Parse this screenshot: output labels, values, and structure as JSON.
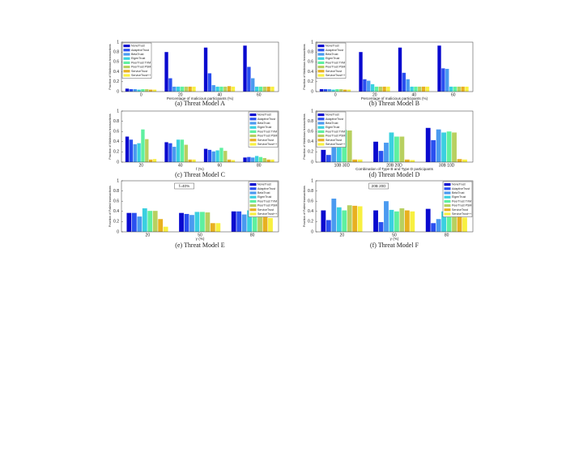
{
  "chart_data": [
    {
      "type": "bar",
      "caption": "(a) Threat Model A",
      "ylabel": "Fraction of Malicious transactions",
      "xlabel": "Percentage of malicious participants (%)",
      "categories": [
        "0",
        "20",
        "40",
        "60"
      ],
      "ylim": [
        0,
        1
      ],
      "yticks": [
        0,
        0.2,
        0.4,
        0.6,
        0.8,
        1
      ],
      "legend": "upper left",
      "series": [
        {
          "name": "NoneTrust",
          "color": "#0a0acf",
          "values": [
            0.06,
            0.8,
            0.89,
            0.93
          ]
        },
        {
          "name": "AdaptiveTrust",
          "color": "#2a4ff0",
          "values": [
            0.05,
            0.27,
            0.37,
            0.5
          ]
        },
        {
          "name": "BetaTrust",
          "color": "#4a9af0",
          "values": [
            0.05,
            0.1,
            0.13,
            0.27
          ]
        },
        {
          "name": "EigenTrust",
          "color": "#3ad0e0",
          "values": [
            0.04,
            0.1,
            0.1,
            0.1
          ]
        },
        {
          "name": "PeerTrust TVM",
          "color": "#5ff0a0",
          "values": [
            0.05,
            0.1,
            0.1,
            0.1
          ]
        },
        {
          "name": "PeerTrust PSM",
          "color": "#b8d060",
          "values": [
            0.05,
            0.1,
            0.1,
            0.1
          ]
        },
        {
          "name": "ServiceTrust",
          "color": "#e8b020",
          "values": [
            0.04,
            0.1,
            0.11,
            0.1
          ]
        },
        {
          "name": "ServiceTrust++",
          "color": "#f8f040",
          "values": [
            0.04,
            0.1,
            0.1,
            0.1
          ]
        }
      ]
    },
    {
      "type": "bar",
      "caption": "(b) Threat Model B",
      "ylabel": "Fraction of Malicious transactions",
      "xlabel": "Percentage of malicious participants (%)",
      "categories": [
        "0",
        "20",
        "40",
        "60"
      ],
      "ylim": [
        0,
        1
      ],
      "yticks": [
        0,
        0.2,
        0.4,
        0.6,
        0.8,
        1
      ],
      "legend": "upper left",
      "series": [
        {
          "name": "NoneTrust",
          "color": "#0a0acf",
          "values": [
            0.05,
            0.8,
            0.89,
            0.93
          ]
        },
        {
          "name": "AdaptiveTrust",
          "color": "#2a4ff0",
          "values": [
            0.05,
            0.25,
            0.38,
            0.47
          ]
        },
        {
          "name": "BetaTrust",
          "color": "#4a9af0",
          "values": [
            0.05,
            0.22,
            0.25,
            0.46
          ]
        },
        {
          "name": "EigenTrust",
          "color": "#3ad0e0",
          "values": [
            0.04,
            0.15,
            0.1,
            0.1
          ]
        },
        {
          "name": "PeerTrust TVM",
          "color": "#5ff0a0",
          "values": [
            0.05,
            0.1,
            0.1,
            0.1
          ]
        },
        {
          "name": "PeerTrust PSM",
          "color": "#b8d060",
          "values": [
            0.05,
            0.1,
            0.1,
            0.1
          ]
        },
        {
          "name": "ServiceTrust",
          "color": "#e8b020",
          "values": [
            0.04,
            0.1,
            0.1,
            0.1
          ]
        },
        {
          "name": "ServiceTrust++",
          "color": "#f8f040",
          "values": [
            0.04,
            0.1,
            0.1,
            0.1
          ]
        }
      ]
    },
    {
      "type": "bar",
      "caption": "(c) Threat Model C",
      "ylabel": "Fraction of Malicious transactions",
      "xlabel": "f (%)",
      "categories": [
        "20",
        "40",
        "60",
        "80"
      ],
      "ylim": [
        0,
        1
      ],
      "yticks": [
        0,
        0.2,
        0.4,
        0.6,
        0.8,
        1
      ],
      "legend": "upper right",
      "series": [
        {
          "name": "NoneTrust",
          "color": "#0a0acf",
          "values": [
            0.5,
            0.39,
            0.26,
            0.09
          ]
        },
        {
          "name": "AdaptiveTrust",
          "color": "#2a4ff0",
          "values": [
            0.44,
            0.37,
            0.24,
            0.1
          ]
        },
        {
          "name": "BetaTrust",
          "color": "#4a9af0",
          "values": [
            0.35,
            0.3,
            0.21,
            0.09
          ]
        },
        {
          "name": "EigenTrust",
          "color": "#3ad0e0",
          "values": [
            0.37,
            0.44,
            0.23,
            0.12
          ]
        },
        {
          "name": "PeerTrust TVM",
          "color": "#5ff0a0",
          "values": [
            0.64,
            0.44,
            0.28,
            0.1
          ]
        },
        {
          "name": "PeerTrust PSM",
          "color": "#b8d060",
          "values": [
            0.45,
            0.34,
            0.22,
            0.08
          ]
        },
        {
          "name": "ServiceTrust",
          "color": "#e8b020",
          "values": [
            0.05,
            0.05,
            0.05,
            0.05
          ]
        },
        {
          "name": "ServiceTrust++",
          "color": "#f8f040",
          "values": [
            0.06,
            0.05,
            0.04,
            0.05
          ]
        }
      ]
    },
    {
      "type": "bar",
      "caption": "(d) Threat Model D",
      "ylabel": "Fraction of Malicious transactions",
      "xlabel": "Combination of Type B and Type D participants",
      "categories": [
        "10B 30D",
        "20B 20D",
        "30B 10D"
      ],
      "ylim": [
        0,
        1
      ],
      "yticks": [
        0,
        0.2,
        0.4,
        0.6,
        0.8,
        1
      ],
      "legend": "upper left",
      "series": [
        {
          "name": "NoneTrust",
          "color": "#0a0acf",
          "values": [
            0.24,
            0.4,
            0.67
          ]
        },
        {
          "name": "AdaptiveTrust",
          "color": "#2a4ff0",
          "values": [
            0.14,
            0.22,
            0.43
          ]
        },
        {
          "name": "BetaTrust",
          "color": "#4a9af0",
          "values": [
            0.4,
            0.38,
            0.64
          ]
        },
        {
          "name": "EigenTrust",
          "color": "#3ad0e0",
          "values": [
            0.55,
            0.58,
            0.58
          ]
        },
        {
          "name": "PeerTrust TVM",
          "color": "#5ff0a0",
          "values": [
            0.63,
            0.5,
            0.6
          ]
        },
        {
          "name": "PeerTrust PSM",
          "color": "#b8d060",
          "values": [
            0.62,
            0.5,
            0.58
          ]
        },
        {
          "name": "ServiceTrust",
          "color": "#e8b020",
          "values": [
            0.05,
            0.05,
            0.06
          ]
        },
        {
          "name": "ServiceTrust++",
          "color": "#f8f040",
          "values": [
            0.05,
            0.04,
            0.05
          ]
        }
      ]
    },
    {
      "type": "bar",
      "caption": "(e) Threat Model E",
      "ylabel": "Fraction of Failed transactions",
      "xlabel": "γ (%)",
      "annotation": "f=40%",
      "categories": [
        "20",
        "50",
        "80"
      ],
      "ylim": [
        0,
        1
      ],
      "yticks": [
        0,
        0.2,
        0.4,
        0.6,
        0.8,
        1
      ],
      "legend": "upper right",
      "series": [
        {
          "name": "NoneTrust",
          "color": "#0a0acf",
          "values": [
            0.37,
            0.37,
            0.4
          ]
        },
        {
          "name": "AdaptiveTrust",
          "color": "#2a4ff0",
          "values": [
            0.37,
            0.35,
            0.4
          ]
        },
        {
          "name": "BetaTrust",
          "color": "#4a9af0",
          "values": [
            0.3,
            0.33,
            0.34
          ]
        },
        {
          "name": "EigenTrust",
          "color": "#3ad0e0",
          "values": [
            0.46,
            0.39,
            0.42
          ]
        },
        {
          "name": "PeerTrust TVM",
          "color": "#5ff0a0",
          "values": [
            0.41,
            0.39,
            0.4
          ]
        },
        {
          "name": "PeerTrust PSM",
          "color": "#b8d060",
          "values": [
            0.41,
            0.38,
            0.38
          ]
        },
        {
          "name": "ServiceTrust",
          "color": "#e8b020",
          "values": [
            0.25,
            0.17,
            0.3
          ]
        },
        {
          "name": "ServiceTrust++",
          "color": "#f8f040",
          "values": [
            0.1,
            0.17,
            0.27
          ]
        }
      ]
    },
    {
      "type": "bar",
      "caption": "(f) Threat Model F",
      "ylabel": "Fraction of Failed transactions",
      "xlabel": "γ (%)",
      "annotation": "20B 20D",
      "categories": [
        "20",
        "50",
        "80"
      ],
      "ylim": [
        0,
        1
      ],
      "yticks": [
        0,
        0.2,
        0.4,
        0.6,
        0.8,
        1
      ],
      "legend": "upper right",
      "series": [
        {
          "name": "NoneTrust",
          "color": "#0a0acf",
          "values": [
            0.42,
            0.42,
            0.45
          ]
        },
        {
          "name": "AdaptiveTrust",
          "color": "#2a4ff0",
          "values": [
            0.23,
            0.19,
            0.17
          ]
        },
        {
          "name": "BetaTrust",
          "color": "#4a9af0",
          "values": [
            0.65,
            0.6,
            0.25
          ]
        },
        {
          "name": "EigenTrust",
          "color": "#3ad0e0",
          "values": [
            0.48,
            0.43,
            0.4
          ]
        },
        {
          "name": "PeerTrust TVM",
          "color": "#5ff0a0",
          "values": [
            0.42,
            0.4,
            0.36
          ]
        },
        {
          "name": "PeerTrust PSM",
          "color": "#b8d060",
          "values": [
            0.52,
            0.46,
            0.4
          ]
        },
        {
          "name": "ServiceTrust",
          "color": "#e8b020",
          "values": [
            0.51,
            0.42,
            0.33
          ]
        },
        {
          "name": "ServiceTrust++",
          "color": "#f8f040",
          "values": [
            0.5,
            0.4,
            0.28
          ]
        }
      ]
    }
  ]
}
